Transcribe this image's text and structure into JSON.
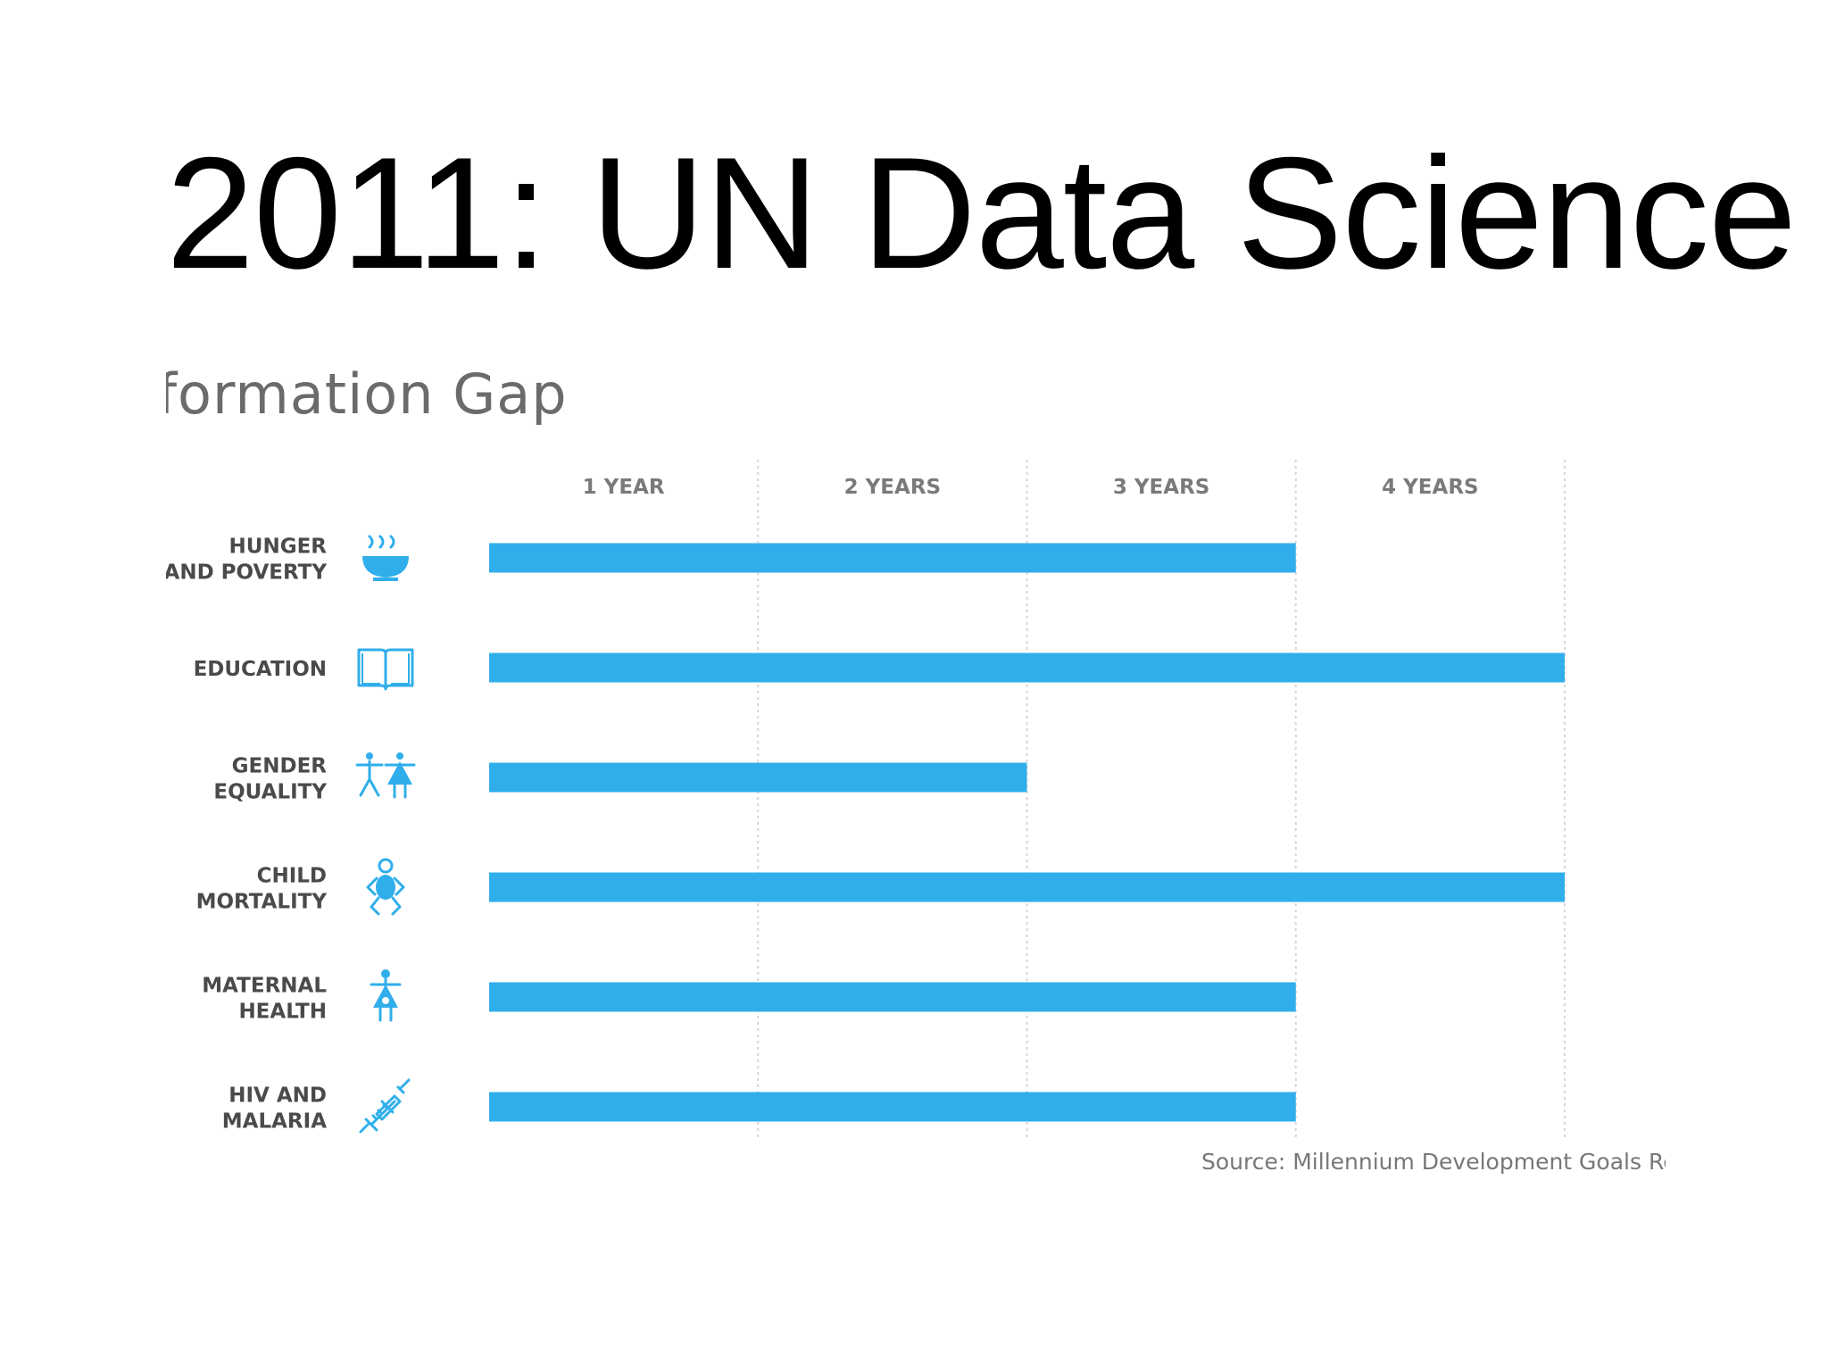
{
  "slide": {
    "title": "2011: UN Data Science"
  },
  "figure": {
    "title": "ıformation Gap",
    "source": "Source: Millennium Development Goals Re"
  },
  "colors": {
    "bar": "#30AEEB",
    "icon": "#30AEEB",
    "category_text": "#4a4a4a",
    "tick_text": "#7a7a7a",
    "grid": "#d6d6d6"
  },
  "chart_data": {
    "type": "bar",
    "orientation": "horizontal",
    "title": "ıformation Gap",
    "xlabel": "",
    "ylabel": "",
    "x_tick_labels": [
      "1 YEAR",
      "2 YEARS",
      "3 YEARS",
      "4 YEARS"
    ],
    "xlim": [
      0,
      4
    ],
    "grid": "vertical dashed",
    "categories": [
      {
        "lines": [
          "HUNGER",
          "AND POVERTY"
        ],
        "icon": "bowl-icon"
      },
      {
        "lines": [
          "EDUCATION"
        ],
        "icon": "book-icon"
      },
      {
        "lines": [
          "GENDER",
          "EQUALITY"
        ],
        "icon": "gender-icon"
      },
      {
        "lines": [
          "CHILD",
          "MORTALITY"
        ],
        "icon": "child-icon"
      },
      {
        "lines": [
          "MATERNAL",
          "HEALTH"
        ],
        "icon": "mother-icon"
      },
      {
        "lines": [
          "HIV AND",
          "MALARIA"
        ],
        "icon": "syringe-icon"
      }
    ],
    "values": [
      3,
      4,
      2,
      4,
      3,
      3
    ],
    "source": "Source: Millennium Development Goals Re"
  }
}
